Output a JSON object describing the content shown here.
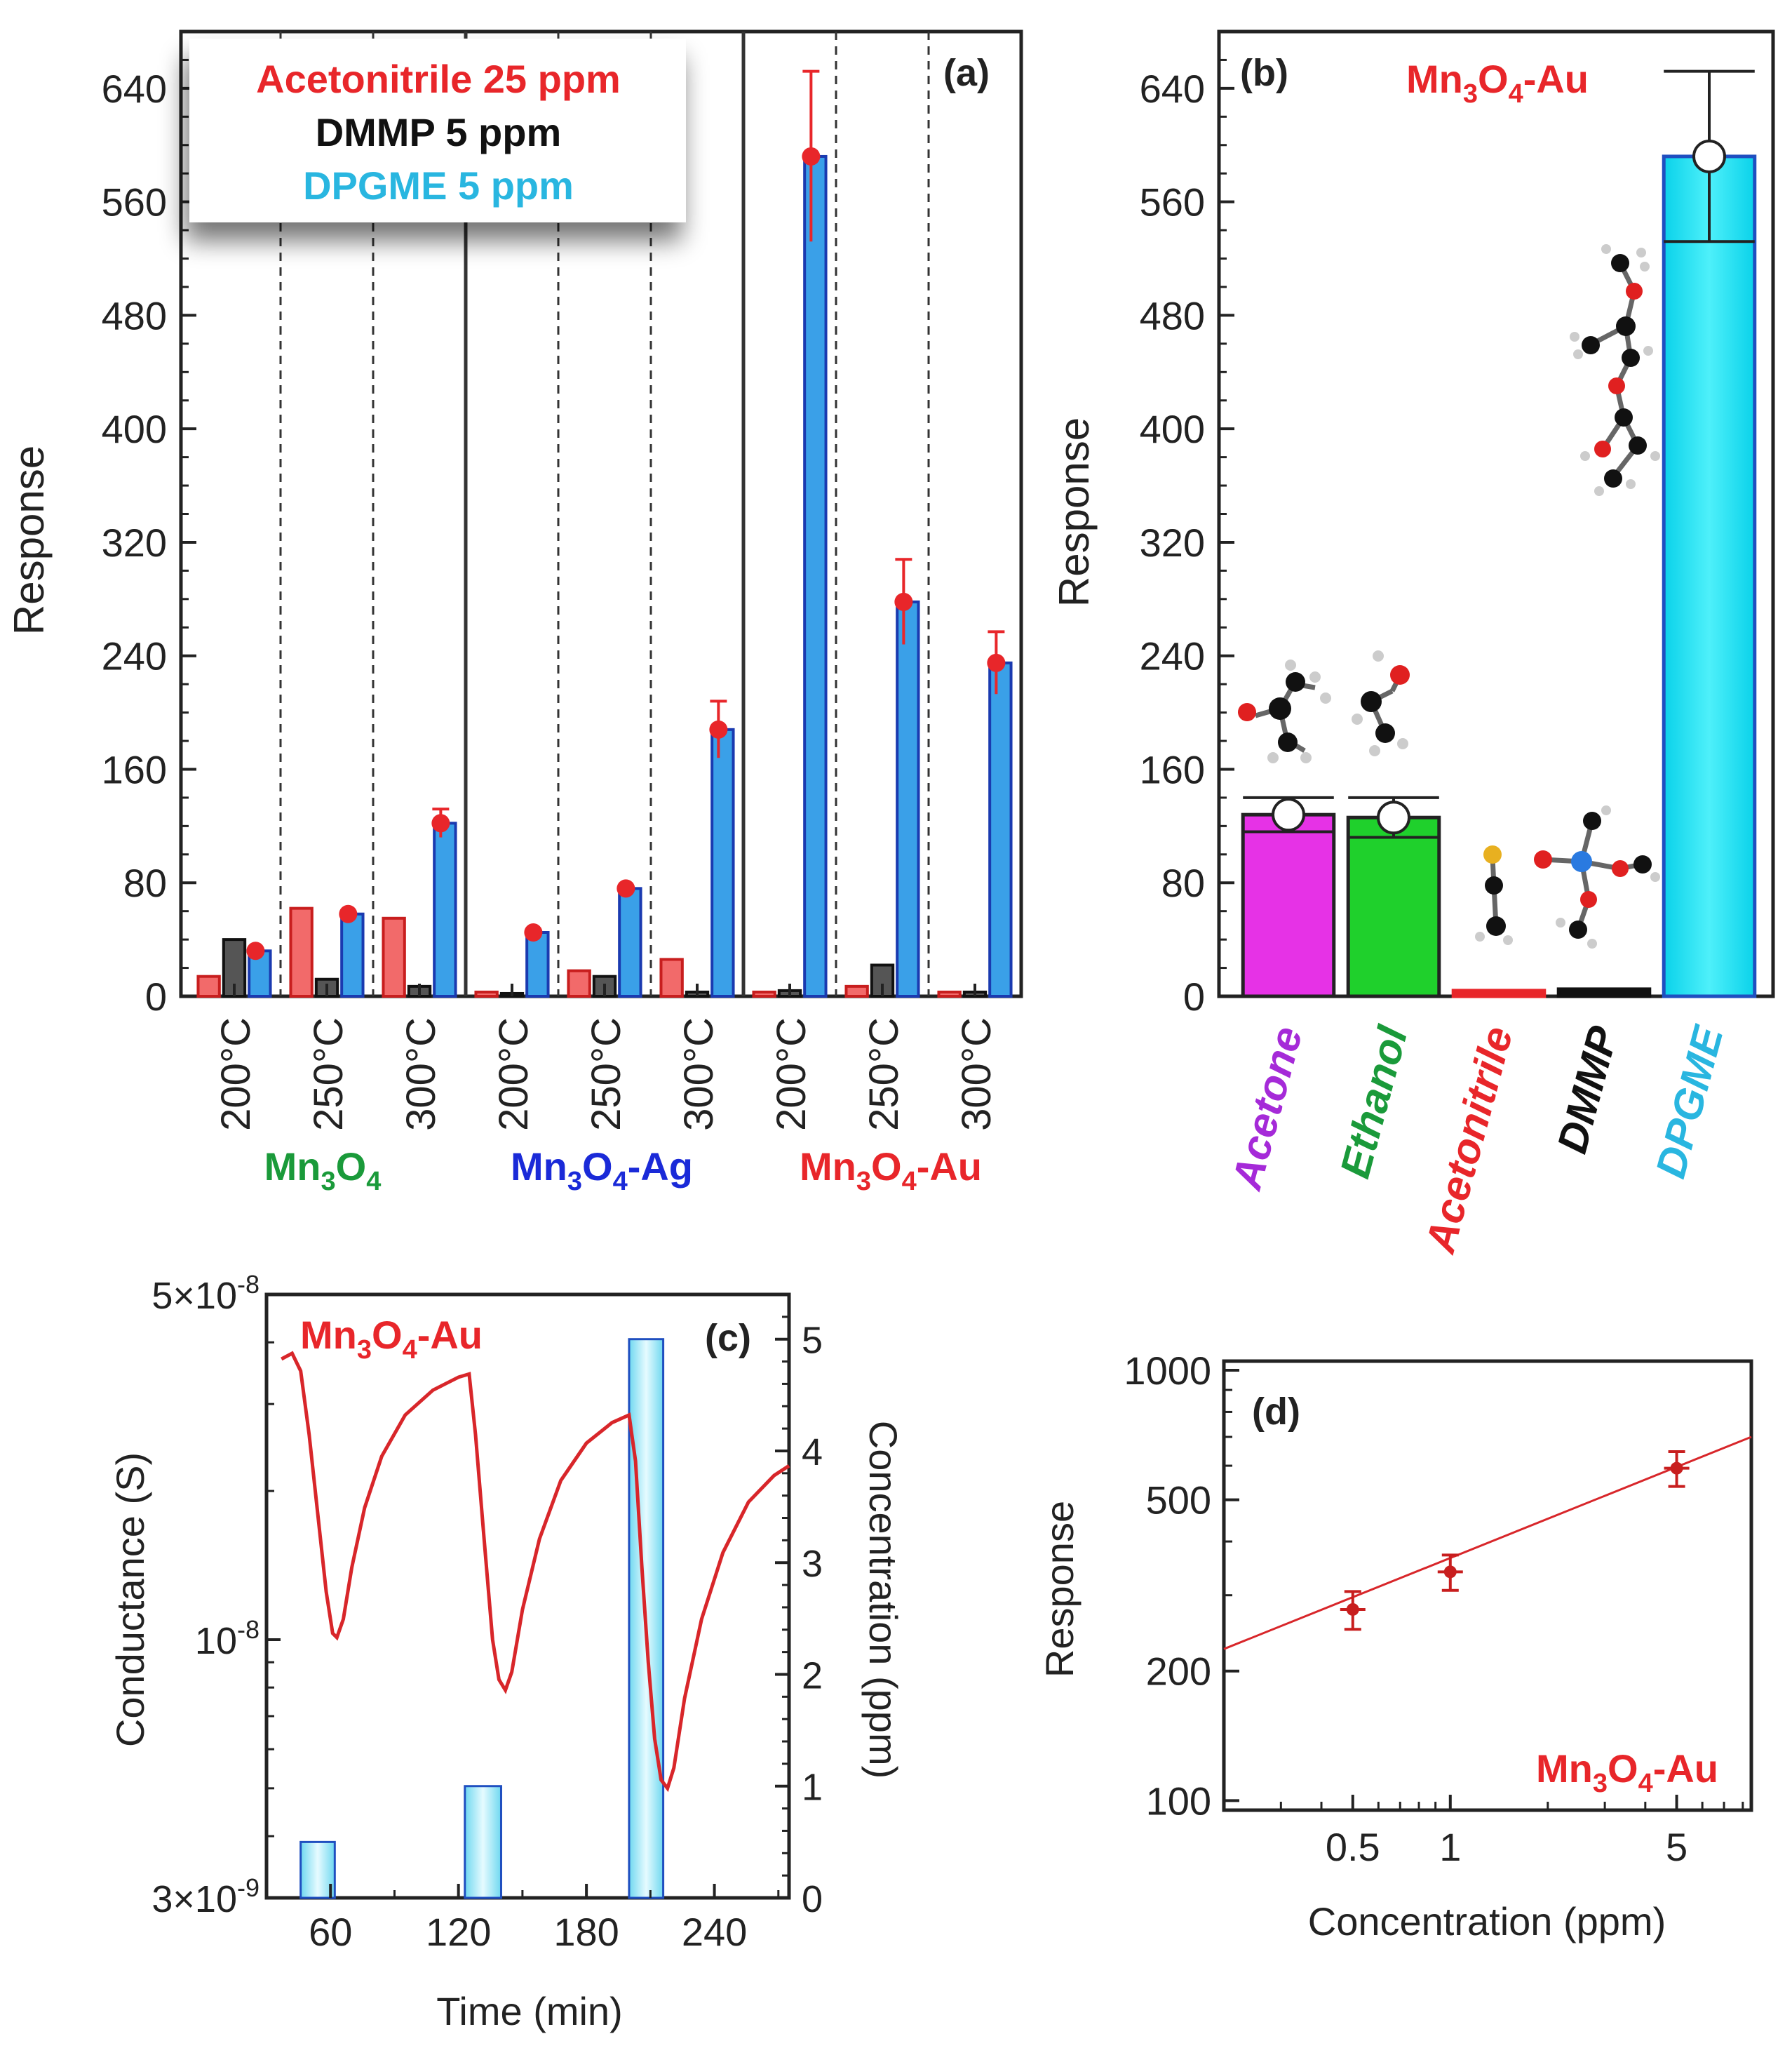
{
  "colors": {
    "acetonitrile": "#e8262a",
    "dmmp": "#111111",
    "dpgme": "#29b6e0",
    "mn3o4": "#1a9a3a",
    "mn3o4_ag": "#1a2ad8",
    "mn3o4_au": "#e8262a",
    "acetone_bar": "#e632e6",
    "acetone_label": "#a52ad8",
    "ethanol": "#1fd02c",
    "ethanol_label": "#1a9a3a",
    "dpgme_bar": "#18e6f2",
    "dpgme_bar_edge": "#1f4fc0",
    "curve": "#d8262a",
    "conc_bar": "#a8ecf8"
  },
  "chart_data": [
    {
      "id": "a",
      "type": "bar",
      "panel_label": "(a)",
      "ylabel": "Response",
      "ylim": [
        0,
        680
      ],
      "yticks": [
        0,
        80,
        160,
        240,
        320,
        400,
        480,
        560,
        640
      ],
      "categories": [
        "200°C",
        "250°C",
        "300°C",
        "200°C",
        "250°C",
        "300°C",
        "200°C",
        "250°C",
        "300°C"
      ],
      "groups": [
        {
          "label": "Mn3O4",
          "label_main": "Mn",
          "sub1": "3",
          "mid": "O",
          "sub2": "4",
          "suffix": "",
          "color": "#1a9a3a"
        },
        {
          "label": "Mn3O4-Ag",
          "label_main": "Mn",
          "sub1": "3",
          "mid": "O",
          "sub2": "4",
          "suffix": "-Ag",
          "color": "#1a2ad8"
        },
        {
          "label": "Mn3O4-Au",
          "label_main": "Mn",
          "sub1": "3",
          "mid": "O",
          "sub2": "4",
          "suffix": "-Au",
          "color": "#e8262a"
        }
      ],
      "legend": [
        {
          "text": "Acetonitrile 25 ppm",
          "color": "#e8262a"
        },
        {
          "text": "DMMP 5 ppm",
          "color": "#111111"
        },
        {
          "text": "DPGME 5 ppm",
          "color": "#29b6e0"
        }
      ],
      "series": [
        {
          "name": "Acetonitrile 25 ppm",
          "values": [
            14,
            62,
            55,
            3,
            18,
            26,
            3,
            7,
            3
          ],
          "errors": [
            0,
            0,
            0,
            0,
            0,
            0,
            0,
            0,
            0
          ]
        },
        {
          "name": "DMMP 5 ppm",
          "values": [
            40,
            12,
            7,
            2,
            14,
            3,
            4,
            22,
            3
          ],
          "errors": [
            0,
            0,
            0,
            0,
            0,
            0,
            0,
            0,
            0
          ]
        },
        {
          "name": "DPGME 5 ppm",
          "values": [
            32,
            58,
            122,
            45,
            76,
            188,
            592,
            278,
            235
          ],
          "errors": [
            0,
            0,
            10,
            0,
            0,
            20,
            60,
            30,
            22
          ]
        }
      ]
    },
    {
      "id": "b",
      "type": "bar",
      "panel_label": "(b)",
      "title_main": "Mn",
      "title_sub1": "3",
      "title_mid": "O",
      "title_sub2": "4",
      "title_suffix": "-Au",
      "ylabel": "Response",
      "ylim": [
        0,
        680
      ],
      "yticks": [
        0,
        80,
        160,
        240,
        320,
        400,
        480,
        560,
        640
      ],
      "categories": [
        "Acetone",
        "Ethanol",
        "Acetonitrile",
        "DMMP",
        "DPGME"
      ],
      "values": [
        128,
        126,
        4,
        5,
        592
      ],
      "errors": [
        12,
        14,
        0,
        0,
        60
      ]
    },
    {
      "id": "c",
      "type": "line",
      "panel_label": "(c)",
      "title_main": "Mn",
      "title_sub1": "3",
      "title_mid": "O",
      "title_sub2": "4",
      "title_suffix": "-Au",
      "xlabel": "Time (min)",
      "ylabel": "Conductance (S)",
      "ylabel_right": "Concentration (ppm)",
      "xlim": [
        30,
        275
      ],
      "xticks": [
        60,
        120,
        180,
        240
      ],
      "y_scale": "log",
      "ylim": [
        3e-09,
        5e-08
      ],
      "yticks_labeled": [
        {
          "value": 3e-09,
          "mant": "3×10",
          "exp": "-9"
        },
        {
          "value": 1e-08,
          "mant": "10",
          "exp": "-8"
        },
        {
          "value": 5e-08,
          "mant": "5×10",
          "exp": "-8"
        }
      ],
      "y2lim": [
        0,
        5.4
      ],
      "y2ticks": [
        0,
        1,
        2,
        3,
        4,
        5
      ],
      "conductance": [
        [
          37,
          3.7e-08
        ],
        [
          42,
          3.8e-08
        ],
        [
          46,
          3.5e-08
        ],
        [
          50,
          2.6e-08
        ],
        [
          54,
          1.8e-08
        ],
        [
          58,
          1.25e-08
        ],
        [
          61,
          1.03e-08
        ],
        [
          63,
          1.01e-08
        ],
        [
          66,
          1.1e-08
        ],
        [
          70,
          1.4e-08
        ],
        [
          76,
          1.85e-08
        ],
        [
          84,
          2.35e-08
        ],
        [
          95,
          2.85e-08
        ],
        [
          108,
          3.2e-08
        ],
        [
          120,
          3.4e-08
        ],
        [
          125,
          3.45e-08
        ],
        [
          128,
          2.6e-08
        ],
        [
          132,
          1.6e-08
        ],
        [
          136,
          1e-08
        ],
        [
          139,
          8.3e-09
        ],
        [
          142,
          7.9e-09
        ],
        [
          145,
          8.6e-09
        ],
        [
          150,
          1.15e-08
        ],
        [
          158,
          1.6e-08
        ],
        [
          168,
          2.1e-08
        ],
        [
          180,
          2.5e-08
        ],
        [
          192,
          2.75e-08
        ],
        [
          200,
          2.85e-08
        ],
        [
          203,
          2.3e-08
        ],
        [
          206,
          1.4e-08
        ],
        [
          209,
          9e-09
        ],
        [
          212,
          6.3e-09
        ],
        [
          215,
          5.2e-09
        ],
        [
          218,
          5e-09
        ],
        [
          221,
          5.5e-09
        ],
        [
          226,
          7.6e-09
        ],
        [
          234,
          1.1e-08
        ],
        [
          244,
          1.5e-08
        ],
        [
          256,
          1.9e-08
        ],
        [
          268,
          2.15e-08
        ],
        [
          275,
          2.25e-08
        ]
      ],
      "concentration_pulses": [
        {
          "start": 46,
          "end": 62,
          "value": 0.5
        },
        {
          "start": 123,
          "end": 140,
          "value": 1
        },
        {
          "start": 200,
          "end": 216,
          "value": 5
        }
      ]
    },
    {
      "id": "d",
      "type": "scatter",
      "panel_label": "(d)",
      "title_main": "Mn",
      "title_sub1": "3",
      "title_mid": "O",
      "title_sub2": "4",
      "title_suffix": "-Au",
      "xlabel": "Concentration (ppm)",
      "ylabel": "Response",
      "x_scale": "log",
      "y_scale": "log",
      "xlim": [
        0.2,
        8.5
      ],
      "ylim": [
        95,
        1050
      ],
      "xticks": [
        {
          "value": 0.5,
          "label": "0.5"
        },
        {
          "value": 1,
          "label": "1"
        },
        {
          "value": 5,
          "label": "5"
        }
      ],
      "yticks": [
        {
          "value": 100,
          "label": "100"
        },
        {
          "value": 200,
          "label": "200"
        },
        {
          "value": 500,
          "label": "500"
        },
        {
          "value": 1000,
          "label": "1000"
        }
      ],
      "points": [
        {
          "x": 0.5,
          "y": 278,
          "err": 28
        },
        {
          "x": 1,
          "y": 340,
          "err": 32
        },
        {
          "x": 5,
          "y": 592,
          "err": 55
        }
      ],
      "fit": [
        [
          0.2,
          225
        ],
        [
          8.5,
          700
        ]
      ]
    }
  ]
}
